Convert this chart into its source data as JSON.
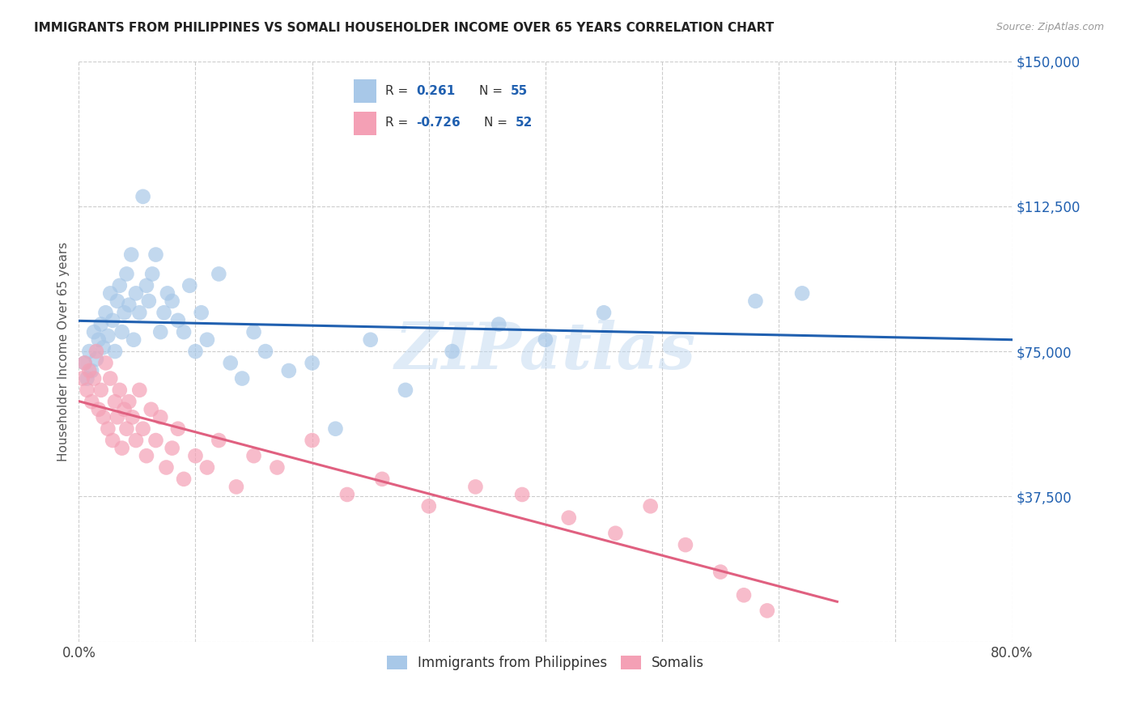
{
  "title": "IMMIGRANTS FROM PHILIPPINES VS SOMALI HOUSEHOLDER INCOME OVER 65 YEARS CORRELATION CHART",
  "source": "Source: ZipAtlas.com",
  "ylabel": "Householder Income Over 65 years",
  "xlim": [
    0.0,
    0.8
  ],
  "ylim": [
    0,
    150000
  ],
  "yticks": [
    0,
    37500,
    75000,
    112500,
    150000
  ],
  "ytick_labels": [
    "",
    "$37,500",
    "$75,000",
    "$112,500",
    "$150,000"
  ],
  "xticks": [
    0.0,
    0.1,
    0.2,
    0.3,
    0.4,
    0.5,
    0.6,
    0.7,
    0.8
  ],
  "xtick_labels": [
    "0.0%",
    "",
    "",
    "",
    "",
    "",
    "",
    "",
    "80.0%"
  ],
  "color_blue": "#a8c8e8",
  "color_pink": "#f4a0b5",
  "line_blue": "#2060b0",
  "line_pink": "#e06080",
  "watermark": "ZIPatlas",
  "philippines_x": [
    0.005,
    0.007,
    0.009,
    0.011,
    0.013,
    0.015,
    0.017,
    0.019,
    0.021,
    0.023,
    0.025,
    0.027,
    0.029,
    0.031,
    0.033,
    0.035,
    0.037,
    0.039,
    0.041,
    0.043,
    0.045,
    0.047,
    0.049,
    0.052,
    0.055,
    0.058,
    0.06,
    0.063,
    0.066,
    0.07,
    0.073,
    0.076,
    0.08,
    0.085,
    0.09,
    0.095,
    0.1,
    0.105,
    0.11,
    0.12,
    0.13,
    0.14,
    0.15,
    0.16,
    0.18,
    0.2,
    0.22,
    0.25,
    0.28,
    0.32,
    0.36,
    0.4,
    0.45,
    0.58,
    0.62
  ],
  "philippines_y": [
    72000,
    68000,
    75000,
    70000,
    80000,
    73000,
    78000,
    82000,
    76000,
    85000,
    79000,
    90000,
    83000,
    75000,
    88000,
    92000,
    80000,
    85000,
    95000,
    87000,
    100000,
    78000,
    90000,
    85000,
    115000,
    92000,
    88000,
    95000,
    100000,
    80000,
    85000,
    90000,
    88000,
    83000,
    80000,
    92000,
    75000,
    85000,
    78000,
    95000,
    72000,
    68000,
    80000,
    75000,
    70000,
    72000,
    55000,
    78000,
    65000,
    75000,
    82000,
    78000,
    85000,
    88000,
    90000
  ],
  "somali_x": [
    0.003,
    0.005,
    0.007,
    0.009,
    0.011,
    0.013,
    0.015,
    0.017,
    0.019,
    0.021,
    0.023,
    0.025,
    0.027,
    0.029,
    0.031,
    0.033,
    0.035,
    0.037,
    0.039,
    0.041,
    0.043,
    0.046,
    0.049,
    0.052,
    0.055,
    0.058,
    0.062,
    0.066,
    0.07,
    0.075,
    0.08,
    0.085,
    0.09,
    0.1,
    0.11,
    0.12,
    0.135,
    0.15,
    0.17,
    0.2,
    0.23,
    0.26,
    0.3,
    0.34,
    0.38,
    0.42,
    0.46,
    0.49,
    0.52,
    0.55,
    0.57,
    0.59
  ],
  "somali_y": [
    68000,
    72000,
    65000,
    70000,
    62000,
    68000,
    75000,
    60000,
    65000,
    58000,
    72000,
    55000,
    68000,
    52000,
    62000,
    58000,
    65000,
    50000,
    60000,
    55000,
    62000,
    58000,
    52000,
    65000,
    55000,
    48000,
    60000,
    52000,
    58000,
    45000,
    50000,
    55000,
    42000,
    48000,
    45000,
    52000,
    40000,
    48000,
    45000,
    52000,
    38000,
    42000,
    35000,
    40000,
    38000,
    32000,
    28000,
    35000,
    25000,
    18000,
    12000,
    8000
  ]
}
